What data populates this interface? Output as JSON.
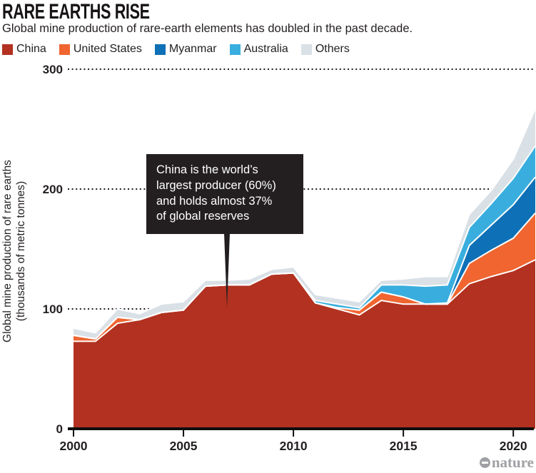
{
  "header": {
    "title": "RARE EARTHS RISE",
    "subtitle": "Global mine production of rare-earth elements has doubled in the past decade."
  },
  "chart_data": {
    "type": "area",
    "stacked": true,
    "title": "RARE EARTHS RISE",
    "ylabel": "Global mine production of rare earths\n(thousands of metric tonnes)",
    "xlabel": "",
    "ylim": [
      0,
      300
    ],
    "yticks": [
      0,
      100,
      200,
      300
    ],
    "xticks": [
      2000,
      2005,
      2010,
      2015,
      2020
    ],
    "grid": "dotted-horizontal",
    "legend_position": "top",
    "x": [
      2000,
      2001,
      2002,
      2003,
      2004,
      2005,
      2006,
      2007,
      2008,
      2009,
      2010,
      2011,
      2012,
      2013,
      2014,
      2015,
      2016,
      2017,
      2018,
      2019,
      2020,
      2021
    ],
    "series": [
      {
        "name": "China",
        "color": "#b23120",
        "values": [
          73,
          73,
          88,
          91,
          97,
          99,
          119,
          120,
          120,
          129,
          130,
          105,
          100,
          95,
          107,
          104,
          104,
          104,
          121,
          127,
          132,
          141
        ]
      },
      {
        "name": "United States",
        "color": "#f06530",
        "values": [
          5,
          2,
          5,
          0,
          0,
          0,
          0,
          0,
          0,
          0,
          0,
          0,
          1,
          4,
          7,
          6,
          0,
          0,
          17,
          22,
          27,
          39
        ]
      },
      {
        "name": "Myanmar",
        "color": "#0e70b6",
        "values": [
          0,
          0,
          0,
          0,
          0,
          0,
          0,
          0,
          0,
          0,
          0,
          0,
          0,
          0,
          0,
          0,
          0,
          1,
          15,
          21,
          28,
          30
        ]
      },
      {
        "name": "Australia",
        "color": "#39aede",
        "values": [
          0,
          0,
          0,
          0,
          0,
          0,
          0,
          0,
          0,
          0,
          0,
          2,
          3,
          2,
          6,
          10,
          15,
          15,
          15,
          18,
          22,
          26
        ]
      },
      {
        "name": "Others",
        "color": "#d9e0e6",
        "values": [
          6,
          5,
          7,
          5,
          7,
          7,
          5,
          4,
          5,
          4,
          5,
          5,
          5,
          5,
          4,
          5,
          8,
          7,
          11,
          11,
          16,
          31
        ]
      }
    ]
  },
  "annotation": {
    "text": "China is the world’s\nlargest producer (60%)\nand holds almost 37%\nof global reserves"
  },
  "colors": {
    "text": "#231f20",
    "grid": "#231f20",
    "axis": "#0f0d0e",
    "callout_bg": "#231f20",
    "callout_text": "#ffffff",
    "logo": "#9ea0a3",
    "separator_stroke": "#ffffff"
  },
  "footer": {
    "credit": "nature"
  }
}
